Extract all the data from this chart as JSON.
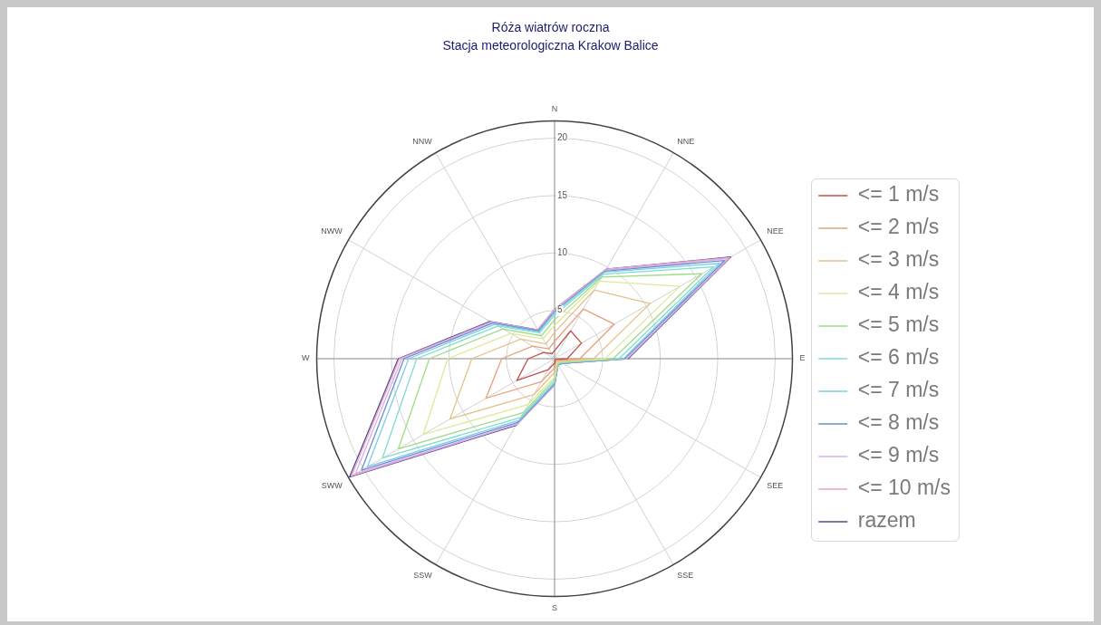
{
  "chart_data": {
    "type": "radar",
    "title": "Róża wiatrów roczna",
    "subtitle": "Stacja meteorologiczna Krakow Balice",
    "categories": [
      "N",
      "NNE",
      "NEE",
      "E",
      "SEE",
      "SSE",
      "S",
      "SSW",
      "SWW",
      "W",
      "NWW",
      "NNW"
    ],
    "series": [
      {
        "name": "<= 1 m/s",
        "color": "#c0504d",
        "values": [
          1.5,
          3.6,
          3.5,
          1.9,
          0.9,
          0.9,
          1.2,
          1.9,
          4.6,
          3.1,
          1.9,
          1.3
        ]
      },
      {
        "name": "<= 2 m/s",
        "color": "#e8a07a",
        "values": [
          2.3,
          5.8,
          6.8,
          3.0,
          1.1,
          1.0,
          1.6,
          3.1,
          7.7,
          5.4,
          3.0,
          1.8
        ]
      },
      {
        "name": "<= 3 m/s",
        "color": "#e6c08a",
        "values": [
          3.1,
          7.7,
          10.4,
          4.2,
          1.2,
          1.1,
          2.0,
          4.4,
          11.3,
          8.0,
          4.2,
          2.3
        ]
      },
      {
        "name": "<= 4 m/s",
        "color": "#dfe89a",
        "values": [
          3.7,
          8.6,
          13.4,
          5.2,
          1.3,
          1.2,
          2.4,
          5.4,
          14.0,
          10.1,
          5.2,
          2.8
        ]
      },
      {
        "name": "<= 5 m/s",
        "color": "#9fdc8a",
        "values": [
          4.2,
          9.0,
          15.6,
          5.9,
          1.4,
          1.3,
          2.6,
          6.2,
          16.5,
          11.7,
          6.0,
          3.1
        ]
      },
      {
        "name": "<= 6 m/s",
        "color": "#7fdcd0",
        "values": [
          4.6,
          9.3,
          16.8,
          6.4,
          1.5,
          1.3,
          2.8,
          6.7,
          18.1,
          12.8,
          6.5,
          3.4
        ]
      },
      {
        "name": "<= 7 m/s",
        "color": "#7ccbe8",
        "values": [
          4.8,
          9.5,
          17.4,
          6.8,
          1.5,
          1.4,
          2.9,
          7.0,
          19.6,
          13.5,
          6.8,
          3.5
        ]
      },
      {
        "name": "<= 8 m/s",
        "color": "#6a8fd0",
        "values": [
          4.9,
          9.6,
          17.9,
          6.9,
          1.6,
          1.4,
          3.0,
          7.2,
          20.2,
          13.9,
          7.0,
          3.6
        ]
      },
      {
        "name": "<= 9 m/s",
        "color": "#d7b0e8",
        "values": [
          5.0,
          9.7,
          18.2,
          7.1,
          1.6,
          1.4,
          3.1,
          7.4,
          20.8,
          14.1,
          7.1,
          3.6
        ]
      },
      {
        "name": "<= 10 m/s",
        "color": "#f0a0c8",
        "values": [
          5.1,
          9.8,
          18.4,
          7.1,
          1.6,
          1.4,
          3.1,
          7.4,
          21.2,
          14.3,
          7.2,
          3.7
        ]
      },
      {
        "name": "razem",
        "color": "#4b4b8f",
        "values": [
          5.1,
          9.8,
          18.5,
          7.2,
          1.6,
          1.4,
          3.1,
          7.5,
          21.4,
          14.4,
          7.3,
          3.7
        ]
      }
    ],
    "ylim": [
      0.8,
      21.5
    ],
    "yticks": [
      5,
      10,
      15,
      20
    ],
    "grid": true,
    "legend": "right",
    "marker": "none"
  }
}
